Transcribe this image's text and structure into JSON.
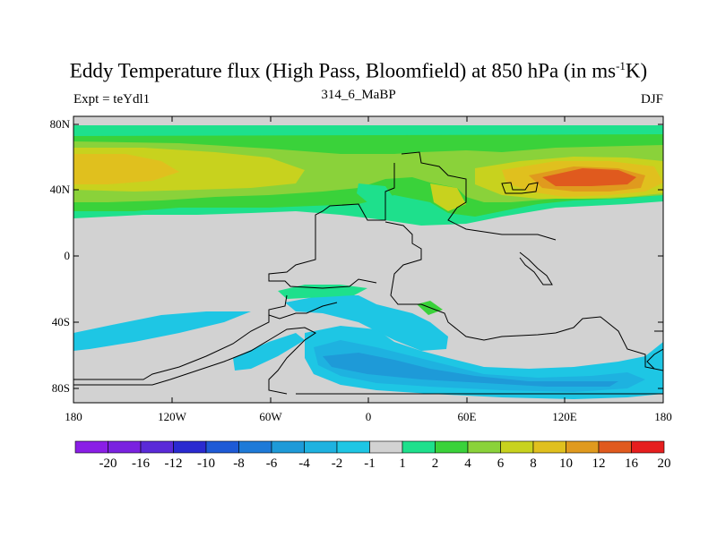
{
  "title": {
    "prefix": "Eddy Temperature flux (High Pass, Bloomfield) at 850 hPa (in ms",
    "superscript": "-1",
    "suffix": "K)"
  },
  "subtitle": {
    "left": "Expt = teYdl1",
    "center": "314_6_MaBP",
    "right": "DJF"
  },
  "axes": {
    "y_ticks": [
      "80N",
      "40N",
      "0",
      "40S",
      "80S"
    ],
    "x_ticks": [
      "180",
      "120W",
      "60W",
      "0",
      "60E",
      "120E",
      "180"
    ]
  },
  "colorbar": {
    "labels": [
      "-20",
      "-16",
      "-12",
      "-10",
      "-8",
      "-6",
      "-4",
      "-2",
      "-1",
      "1",
      "2",
      "4",
      "6",
      "8",
      "10",
      "12",
      "16",
      "20"
    ],
    "colors": [
      "#8a1ee6",
      "#7a22e0",
      "#5a2ad8",
      "#2a2ad0",
      "#1e5ad6",
      "#1e7ad8",
      "#1e9ad8",
      "#1eb2e0",
      "#1ec6e4",
      "#d2d2d2",
      "#1ee08c",
      "#3ad23a",
      "#8ad23a",
      "#c8d21e",
      "#e0c01e",
      "#e09a1e",
      "#e05a1e",
      "#e61e1e"
    ],
    "land_color": "#d2d2d2"
  }
}
